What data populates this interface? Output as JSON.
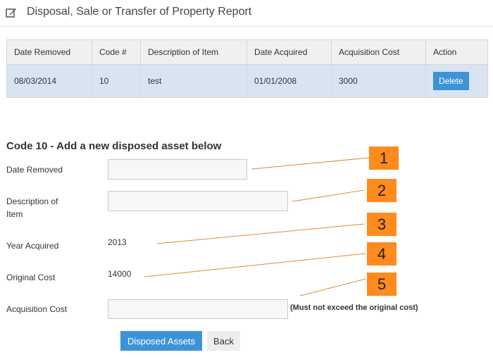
{
  "header": {
    "title": "Disposal, Sale or Transfer of Property Report",
    "icon": "edit-icon"
  },
  "table": {
    "columns": [
      "Date Removed",
      "Code #",
      "Description of Item",
      "Date Acquired",
      "Acquisition Cost",
      "Action"
    ],
    "rows": [
      {
        "date_removed": "08/03/2014",
        "code": "10",
        "description": "test",
        "date_acquired": "01/01/2008",
        "acquisition_cost": "3000",
        "action": "Delete"
      }
    ]
  },
  "form": {
    "title": "Code 10 - Add a new disposed asset below",
    "date_removed_label": "Date Removed",
    "description_label_line1": "Description of",
    "description_label_line2": "Item",
    "year_acquired_label": "Year Acquired",
    "year_acquired_value": "2013",
    "original_cost_label": "Original Cost",
    "original_cost_value": "14000",
    "acquisition_cost_label": "Acquisition Cost",
    "acquisition_note": "(Must not exceed the original cost)",
    "submit_label": "Disposed Assets",
    "back_label": "Back"
  },
  "callouts": [
    "1",
    "2",
    "3",
    "4",
    "5"
  ],
  "colors": {
    "accent": "#3e93d6",
    "callout": "#ff8a1e",
    "row_highlight": "#d9e4f3"
  }
}
